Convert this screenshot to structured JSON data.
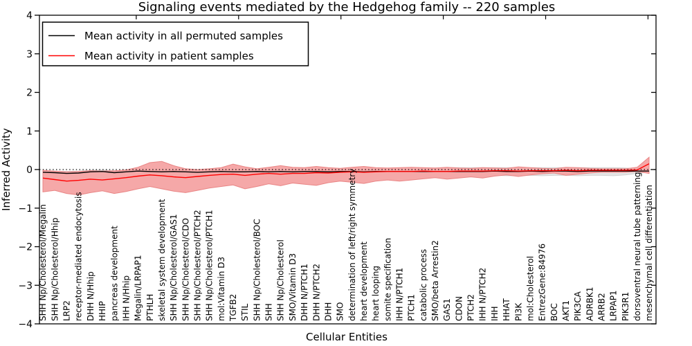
{
  "chart_data": {
    "type": "line",
    "title": "Signaling events mediated by the Hedgehog family -- 220 samples",
    "xlabel": "Cellular Entities",
    "ylabel": "Inferred Activity",
    "ylim": [
      -4,
      4
    ],
    "yticks": [
      4,
      3,
      2,
      1,
      0,
      -1,
      -2,
      -3,
      -4
    ],
    "grid": false,
    "zero_line": {
      "value": 0,
      "style": "dotted",
      "color": "#000000"
    },
    "legend_position": "upper left",
    "categories": [
      "SHH Np/Cholesterol/Megalin",
      "SHH Np/Cholesterol/Hhip",
      "LRP2",
      "receptor-mediated endocytosis",
      "DHH N/Hhip",
      "HHIP",
      "pancreas development",
      "IHH N/Hhip",
      "Megalin/LRPAP1",
      "PTHLH",
      "skeletal system development",
      "SHH Np/Cholesterol/GAS1",
      "SHH Np/Cholesterol/CDO",
      "SHH Np/Cholesterol/PTCH2",
      "SHH Np/Cholesterol/PTCH1",
      "mol:Vitamin D3",
      "TGFB2",
      "STIL",
      "SHH Np/Cholesterol/BOC",
      "SHH",
      "SHH Np/Cholesterol",
      "SMO/Vitamin D3",
      "DHH N/PTCH1",
      "DHH N/PTCH2",
      "DHH",
      "SMO",
      "determination of left/right symmetry",
      "heart development",
      "heart looping",
      "somite specification",
      "IHH N/PTCH1",
      "PTCH1",
      "catabolic process",
      "SMO/beta Arrestin2",
      "GAS1",
      "CDON",
      "PTCH2",
      "IHH N/PTCH2",
      "IHH",
      "HHAT",
      "PI3K",
      "mol:Cholesterol",
      "EntrezGene:84976",
      "BOC",
      "AKT1",
      "PIK3CA",
      "ADRBK1",
      "ARRB2",
      "LRPAP1",
      "PIK3R1",
      "dorsoventral neural tube patterning",
      "mesenchymal cell differentiation"
    ],
    "series": [
      {
        "name": "Mean activity in all permuted samples",
        "color": "#000000",
        "values": [
          -0.07,
          -0.08,
          -0.1,
          -0.09,
          -0.06,
          -0.05,
          -0.08,
          -0.06,
          -0.04,
          -0.05,
          -0.06,
          -0.05,
          -0.06,
          -0.07,
          -0.06,
          -0.05,
          -0.06,
          -0.06,
          -0.05,
          -0.06,
          -0.05,
          -0.06,
          -0.05,
          -0.05,
          -0.06,
          -0.05,
          -0.05,
          -0.06,
          -0.05,
          -0.05,
          -0.05,
          -0.05,
          -0.05,
          -0.05,
          -0.05,
          -0.05,
          -0.05,
          -0.05,
          -0.04,
          -0.05,
          -0.05,
          -0.04,
          -0.05,
          -0.04,
          -0.04,
          -0.05,
          -0.04,
          -0.04,
          -0.04,
          -0.04,
          -0.04,
          -0.04
        ],
        "band_upper": [
          -0.03,
          -0.04,
          -0.05,
          -0.04,
          -0.02,
          -0.01,
          -0.03,
          -0.02,
          0.0,
          -0.01,
          -0.02,
          -0.01,
          -0.02,
          -0.02,
          -0.01,
          0.0,
          -0.01,
          -0.01,
          0.0,
          0.0,
          0.0,
          0.01,
          0.01,
          0.01,
          0.01,
          0.02,
          0.02,
          0.02,
          0.02,
          0.03,
          0.03,
          0.03,
          0.04,
          0.04,
          0.05,
          0.05,
          0.05,
          0.05,
          0.05,
          0.05,
          0.05,
          0.05,
          0.05,
          0.05,
          0.05,
          0.05,
          0.05,
          0.05,
          0.05,
          0.04,
          0.02,
          -0.01
        ],
        "band_lower": [
          -0.11,
          -0.12,
          -0.14,
          -0.13,
          -0.1,
          -0.09,
          -0.12,
          -0.1,
          -0.08,
          -0.09,
          -0.1,
          -0.1,
          -0.11,
          -0.12,
          -0.11,
          -0.1,
          -0.11,
          -0.11,
          -0.1,
          -0.11,
          -0.1,
          -0.12,
          -0.11,
          -0.11,
          -0.12,
          -0.12,
          -0.12,
          -0.13,
          -0.13,
          -0.13,
          -0.13,
          -0.14,
          -0.14,
          -0.14,
          -0.15,
          -0.15,
          -0.15,
          -0.16,
          -0.15,
          -0.16,
          -0.16,
          -0.15,
          -0.16,
          -0.15,
          -0.15,
          -0.16,
          -0.15,
          -0.15,
          -0.16,
          -0.14,
          -0.1,
          -0.07
        ],
        "band_fill": "#e4e4e4",
        "band_edge": "#d2d2d2"
      },
      {
        "name": "Mean activity in patient samples",
        "color": "#ff0000",
        "values": [
          -0.22,
          -0.26,
          -0.3,
          -0.28,
          -0.25,
          -0.27,
          -0.24,
          -0.21,
          -0.17,
          -0.14,
          -0.16,
          -0.19,
          -0.21,
          -0.18,
          -0.15,
          -0.13,
          -0.12,
          -0.15,
          -0.12,
          -0.1,
          -0.12,
          -0.1,
          -0.1,
          -0.08,
          -0.09,
          -0.07,
          -0.06,
          -0.07,
          -0.06,
          -0.05,
          -0.05,
          -0.05,
          -0.04,
          -0.05,
          -0.05,
          -0.04,
          -0.04,
          -0.04,
          -0.03,
          -0.03,
          -0.04,
          -0.03,
          -0.03,
          -0.03,
          -0.02,
          -0.03,
          -0.02,
          -0.02,
          -0.02,
          -0.02,
          -0.01,
          0.15
        ],
        "band_upper": [
          -0.02,
          -0.04,
          -0.06,
          -0.05,
          -0.03,
          -0.04,
          -0.03,
          -0.01,
          0.06,
          0.18,
          0.21,
          0.1,
          0.02,
          0.0,
          0.02,
          0.05,
          0.14,
          0.07,
          0.02,
          0.06,
          0.1,
          0.06,
          0.05,
          0.08,
          0.05,
          0.03,
          0.06,
          0.08,
          0.05,
          0.04,
          0.05,
          0.06,
          0.05,
          0.04,
          0.06,
          0.04,
          0.03,
          0.05,
          0.04,
          0.03,
          0.07,
          0.05,
          0.03,
          0.02,
          0.06,
          0.05,
          0.03,
          0.02,
          0.02,
          0.02,
          0.06,
          0.32
        ],
        "band_lower": [
          -0.58,
          -0.54,
          -0.62,
          -0.66,
          -0.6,
          -0.55,
          -0.62,
          -0.57,
          -0.5,
          -0.44,
          -0.5,
          -0.56,
          -0.6,
          -0.54,
          -0.48,
          -0.44,
          -0.4,
          -0.5,
          -0.44,
          -0.37,
          -0.42,
          -0.35,
          -0.38,
          -0.41,
          -0.34,
          -0.3,
          -0.33,
          -0.36,
          -0.3,
          -0.27,
          -0.3,
          -0.27,
          -0.24,
          -0.21,
          -0.25,
          -0.22,
          -0.19,
          -0.22,
          -0.17,
          -0.14,
          -0.18,
          -0.14,
          -0.11,
          -0.09,
          -0.15,
          -0.12,
          -0.09,
          -0.07,
          -0.07,
          -0.07,
          -0.05,
          -0.1
        ],
        "band_fill": "#f5a8a8",
        "band_edge": "#e98585"
      }
    ],
    "legend": [
      {
        "label": "Mean activity in all permuted samples",
        "color": "#000000"
      },
      {
        "label": "Mean activity in patient samples",
        "color": "#ff0000"
      }
    ]
  },
  "colors": {
    "background": "#ffffff",
    "axis": "#000000",
    "patient_accent": "#ff0000",
    "permuted_accent": "#000000"
  }
}
